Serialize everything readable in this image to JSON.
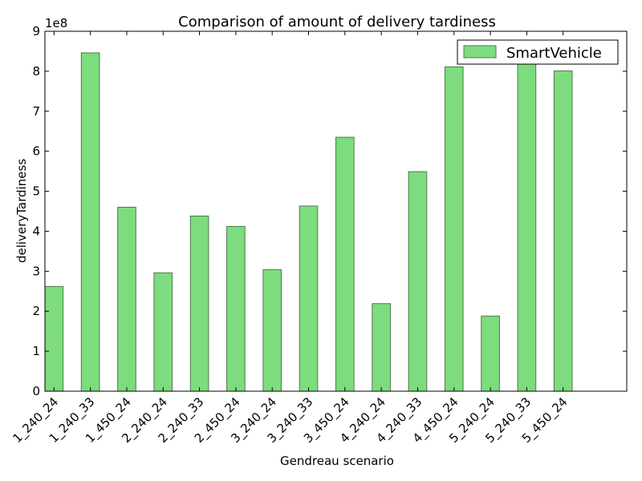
{
  "chart_data": {
    "type": "bar",
    "title": "Comparison of amount of delivery tardiness",
    "xlabel": "Gendreau scenario",
    "ylabel": "deliveryTardiness",
    "y_offset_label": "1e8",
    "y_scale": 100000000,
    "ylim": [
      0,
      9
    ],
    "yticks": [
      0,
      1,
      2,
      3,
      4,
      5,
      6,
      7,
      8,
      9
    ],
    "xlim": [
      0,
      16
    ],
    "bar_width": 0.5,
    "grid": false,
    "legend_position": "top-right",
    "bar_color": "#7ddc7d",
    "bar_edge_color": "#4f7a4f",
    "categories": [
      "1_240_24",
      "1_240_33",
      "1_450_24",
      "2_240_24",
      "2_240_33",
      "2_450_24",
      "3_240_24",
      "3_240_33",
      "3_450_24",
      "4_240_24",
      "4_240_33",
      "4_450_24",
      "5_240_24",
      "5_240_33",
      "5_450_24"
    ],
    "series": [
      {
        "name": "SmartVehicle",
        "values": [
          2.62,
          8.46,
          4.6,
          2.96,
          4.38,
          4.12,
          3.04,
          4.63,
          6.35,
          2.19,
          5.49,
          8.11,
          1.88,
          8.2,
          8.01
        ]
      }
    ]
  }
}
